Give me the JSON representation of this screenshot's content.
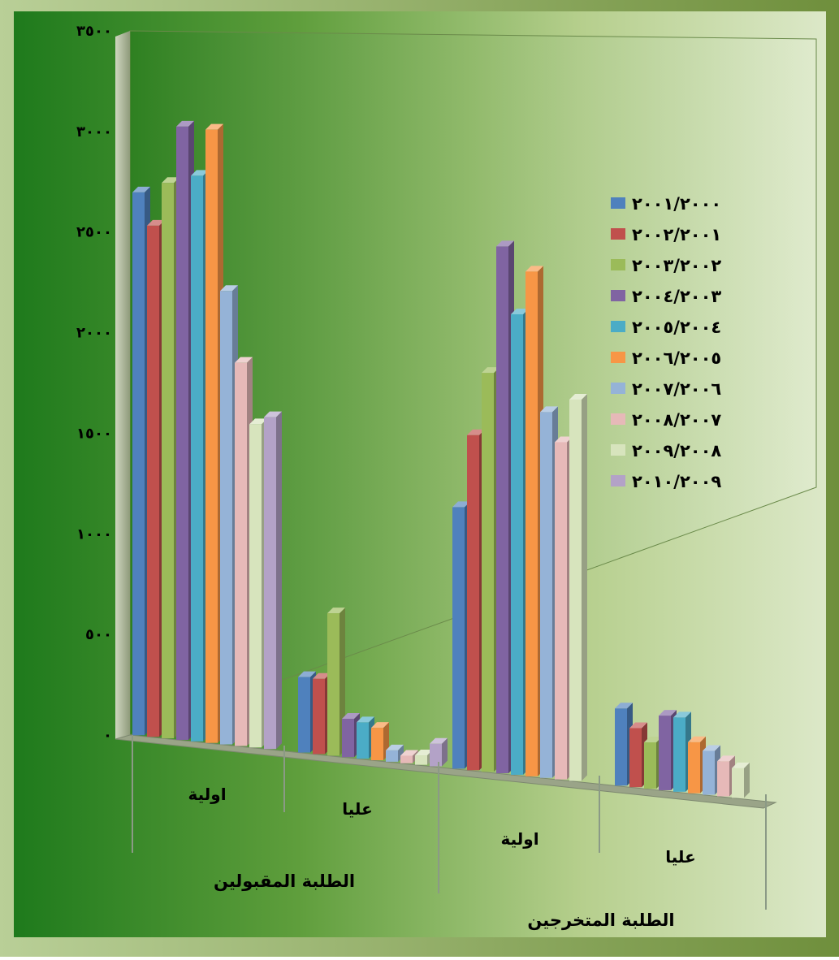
{
  "chart_data": {
    "type": "bar",
    "ylim": [
      0,
      3500
    ],
    "y_ticks": [
      "٠",
      "٥٠٠",
      "١٠٠٠",
      "١٥٠٠",
      "٢٠٠٠",
      "٢٥٠٠",
      "٣٠٠٠",
      "٣٥٠٠"
    ],
    "groups": [
      {
        "label": "الطلبة المقبولين",
        "categories": [
          "اولية",
          "عليا"
        ]
      },
      {
        "label": "الطلبة المتخرجين",
        "categories": [
          "اولية",
          "عليا"
        ]
      }
    ],
    "categories": [
      "اولية",
      "عليا",
      "اولية",
      "عليا"
    ],
    "series": [
      {
        "name": "٢٠٠١/٢٠٠٠",
        "color": "#4F81BD",
        "values": [
          2700,
          390,
          1400,
          430
        ]
      },
      {
        "name": "٢٠٠٢/٢٠٠١",
        "color": "#C0504D",
        "values": [
          2550,
          390,
          1800,
          330
        ]
      },
      {
        "name": "٢٠٠٣/٢٠٠٢",
        "color": "#9BBB59",
        "values": [
          2780,
          740,
          2150,
          260
        ]
      },
      {
        "name": "٢٠٠٤/٢٠٠٣",
        "color": "#8064A2",
        "values": [
          3080,
          200,
          2850,
          420
        ]
      },
      {
        "name": "٢٠٠٥/٢٠٠٤",
        "color": "#4BACC6",
        "values": [
          2850,
          190,
          2500,
          420
        ]
      },
      {
        "name": "٢٠٠٦/٢٠٠٥",
        "color": "#F79646",
        "values": [
          3100,
          170,
          2750,
          290
        ]
      },
      {
        "name": "٢٠٠٧/٢٠٠٦",
        "color": "#95B3D7",
        "values": [
          2300,
          60,
          2000,
          250
        ]
      },
      {
        "name": "٢٠٠٨/٢٠٠٧",
        "color": "#E6B9B8",
        "values": [
          1950,
          40,
          1850,
          200
        ]
      },
      {
        "name": "٢٠٠٩/٢٠٠٨",
        "color": "#D7E4BD",
        "values": [
          1650,
          50,
          2100,
          170
        ]
      },
      {
        "name": "٢٠١٠/٢٠٠٩",
        "color": "#B3A2C7",
        "values": [
          1700,
          120,
          0,
          0
        ]
      }
    ],
    "grid": false,
    "legend": "right"
  }
}
